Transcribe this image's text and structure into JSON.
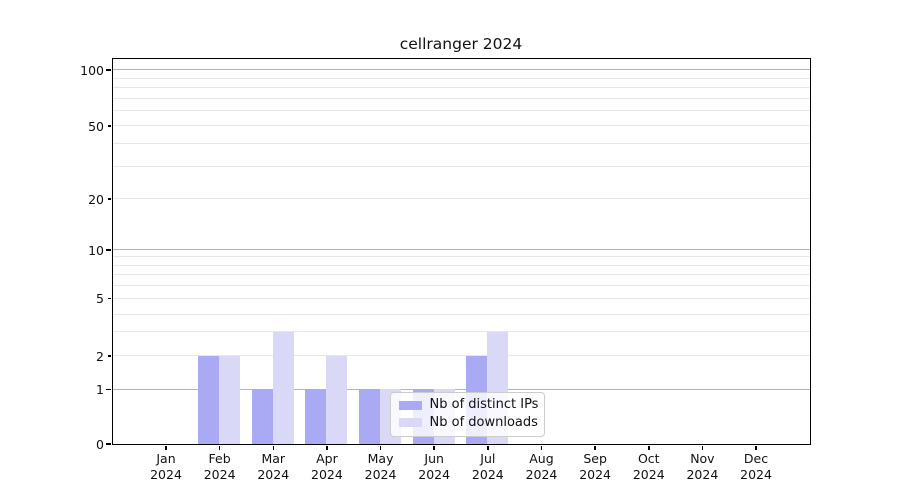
{
  "title": "cellranger 2024",
  "chart_data": {
    "type": "bar",
    "title": "cellranger 2024",
    "categories": [
      "Jan 2024",
      "Feb 2024",
      "Mar 2024",
      "Apr 2024",
      "May 2024",
      "Jun 2024",
      "Jul 2024",
      "Aug 2024",
      "Sep 2024",
      "Oct 2024",
      "Nov 2024",
      "Dec 2024"
    ],
    "series": [
      {
        "name": "Nb of distinct IPs",
        "color": "#a9a9f4",
        "values": [
          0,
          2,
          1,
          1,
          1,
          1,
          2,
          0,
          0,
          0,
          0,
          0
        ]
      },
      {
        "name": "Nb of downloads",
        "color": "#d9d9f7",
        "values": [
          0,
          2,
          3,
          2,
          1,
          1,
          3,
          0,
          0,
          0,
          0,
          0
        ]
      }
    ],
    "xlabel": "",
    "ylabel": "",
    "yscale": "log-like (0 baseline, log above 1)",
    "y_tick_labels": [
      100,
      50,
      20,
      10,
      5,
      2,
      1,
      0
    ],
    "y_major_gridline_values": [
      1,
      10,
      100
    ],
    "y_minor_gridline_values": [
      2,
      3,
      4,
      5,
      6,
      7,
      8,
      9,
      20,
      30,
      40,
      50,
      60,
      70,
      80,
      90
    ],
    "ylim": [
      0,
      140
    ],
    "grid": true,
    "legend_position": "lower center-right inside plot"
  },
  "legend": {
    "items": [
      {
        "label": "Nb of distinct IPs",
        "swatch_color": "#a9a9f4"
      },
      {
        "label": "Nb of downloads",
        "swatch_color": "#d9d9f7"
      }
    ]
  },
  "colors": {
    "ips_bar": "#a9a9f4",
    "downloads_bar": "#d9d9f7",
    "major_grid": "#b3b3b3",
    "minor_grid": "#e7e7e7",
    "axis": "#000000",
    "legend_border": "#cccccc",
    "background": "#ffffff"
  }
}
